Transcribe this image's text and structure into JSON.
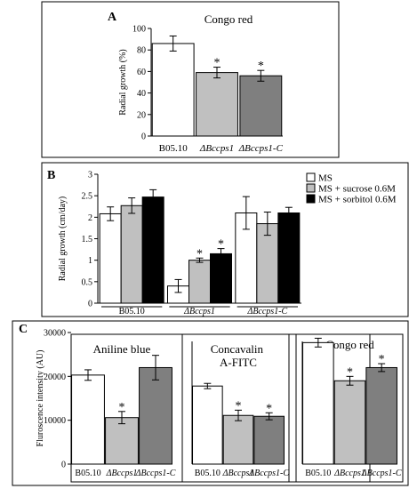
{
  "panels": {
    "A": {
      "letter": "A"
    },
    "B": {
      "letter": "B"
    },
    "C": {
      "letter": "C"
    }
  },
  "colors": {
    "white": "#ffffff",
    "light": "#c0c0c0",
    "mid": "#7f7f7f",
    "black": "#000000"
  },
  "chart_data": [
    {
      "id": "A",
      "type": "bar",
      "title": "Congo red",
      "ylabel": "Radial growth (%)",
      "ylim": [
        0,
        100
      ],
      "yticks": [
        "0",
        "20",
        "40",
        "60",
        "80",
        "100"
      ],
      "categories": [
        "B05.10",
        "ΔBccps1",
        "ΔBccps1-C"
      ],
      "values": [
        86,
        59,
        56
      ],
      "errors": [
        7,
        5,
        5
      ],
      "star": [
        false,
        true,
        true
      ],
      "colors": [
        "#ffffff",
        "#c0c0c0",
        "#7f7f7f"
      ]
    },
    {
      "id": "B",
      "type": "bar",
      "ylabel": "Radial growth (cm/day)",
      "ylim": [
        0,
        3
      ],
      "yticks": [
        "0",
        "0.5",
        "1",
        "1.5",
        "2",
        "2.5",
        "3"
      ],
      "categories": [
        "B05.10",
        "ΔBccps1",
        "ΔBccps1-C"
      ],
      "series": [
        {
          "name": "MS",
          "values": [
            2.08,
            0.4,
            2.1
          ],
          "errors": [
            0.16,
            0.15,
            0.38
          ],
          "star": [
            false,
            false,
            false
          ],
          "color": "#ffffff"
        },
        {
          "name": "MS + sucrose 0.6M",
          "values": [
            2.27,
            1.0,
            1.85
          ],
          "errors": [
            0.18,
            0.05,
            0.27
          ],
          "star": [
            false,
            true,
            false
          ],
          "color": "#c0c0c0"
        },
        {
          "name": "MS + sorbitol 0.6M",
          "values": [
            2.47,
            1.15,
            2.1
          ],
          "errors": [
            0.17,
            0.12,
            0.13
          ],
          "star": [
            false,
            true,
            false
          ],
          "color": "#000000"
        }
      ],
      "legend_position": "top-right"
    },
    {
      "id": "C",
      "type": "bar",
      "ylabel": "Fluroscence intensity (AU)",
      "ylim": [
        0,
        30000
      ],
      "yticks": [
        "0",
        "10000",
        "20000",
        "30000"
      ],
      "subplots": [
        {
          "title": "Aniline blue",
          "categories": [
            "B05.10",
            "ΔBccps1",
            "ΔBccps1-C"
          ],
          "values": [
            20300,
            10600,
            22000
          ],
          "errors": [
            1200,
            1400,
            2800
          ],
          "star": [
            false,
            true,
            false
          ]
        },
        {
          "title": "Concavalin A-FITC",
          "categories": [
            "B05.10",
            "ΔBccps1",
            "ΔBccps1-C"
          ],
          "values": [
            17800,
            11100,
            10900
          ],
          "errors": [
            600,
            1200,
            800
          ],
          "star": [
            false,
            true,
            true
          ]
        },
        {
          "title": "Congo red",
          "categories": [
            "B05.10",
            "ΔBccps1",
            "ΔBccps1-C"
          ],
          "values": [
            27700,
            19000,
            22000
          ],
          "errors": [
            1000,
            1000,
            900
          ],
          "star": [
            false,
            true,
            true
          ]
        }
      ],
      "colors": [
        "#ffffff",
        "#c0c0c0",
        "#7f7f7f"
      ]
    }
  ]
}
